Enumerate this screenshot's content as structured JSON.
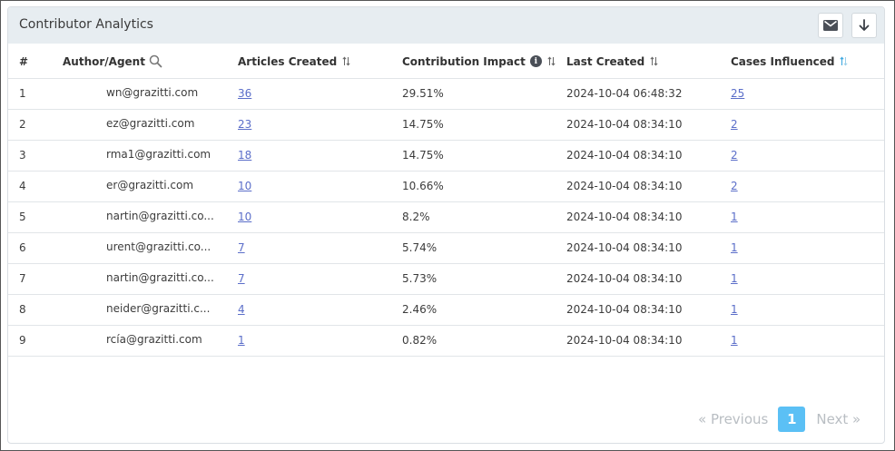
{
  "panel": {
    "title": "Contributor Analytics",
    "email_icon": "mail-icon",
    "download_icon": "download-arrow-icon"
  },
  "table": {
    "columns": [
      "#",
      "Author/Agent",
      "Articles Created",
      "Contribution Impact",
      "Last Created",
      "Cases Influenced"
    ],
    "rows": [
      {
        "idx": "1",
        "author": "wn@grazitti.com",
        "articles": "36",
        "impact": "29.51%",
        "last": "2024-10-04 06:48:32",
        "cases": "25"
      },
      {
        "idx": "2",
        "author": "ez@grazitti.com",
        "articles": "23",
        "impact": "14.75%",
        "last": "2024-10-04 08:34:10",
        "cases": "2"
      },
      {
        "idx": "3",
        "author": "rma1@grazitti.com",
        "articles": "18",
        "impact": "14.75%",
        "last": "2024-10-04 08:34:10",
        "cases": "2"
      },
      {
        "idx": "4",
        "author": "er@grazitti.com",
        "articles": "10",
        "impact": "10.66%",
        "last": "2024-10-04 08:34:10",
        "cases": "2"
      },
      {
        "idx": "5",
        "author": "nartin@grazitti.co...",
        "articles": "10",
        "impact": "8.2%",
        "last": "2024-10-04 08:34:10",
        "cases": "1"
      },
      {
        "idx": "6",
        "author": "urent@grazitti.co...",
        "articles": "7",
        "impact": "5.74%",
        "last": "2024-10-04 08:34:10",
        "cases": "1"
      },
      {
        "idx": "7",
        "author": "nartin@grazitti.co...",
        "articles": "7",
        "impact": "5.73%",
        "last": "2024-10-04 08:34:10",
        "cases": "1"
      },
      {
        "idx": "8",
        "author": "neider@grazitti.c...",
        "articles": "4",
        "impact": "2.46%",
        "last": "2024-10-04 08:34:10",
        "cases": "1"
      },
      {
        "idx": "9",
        "author": "rcía@grazitti.com",
        "articles": "1",
        "impact": "0.82%",
        "last": "2024-10-04 08:34:10",
        "cases": "1"
      }
    ]
  },
  "pagination": {
    "previous": "« Previous",
    "current": "1",
    "next": "Next »"
  },
  "colors": {
    "header_bg": "#e7edf1",
    "link": "#5b6ec9",
    "active_page": "#5bc0f5",
    "active_sort": "#3fa9e0"
  }
}
